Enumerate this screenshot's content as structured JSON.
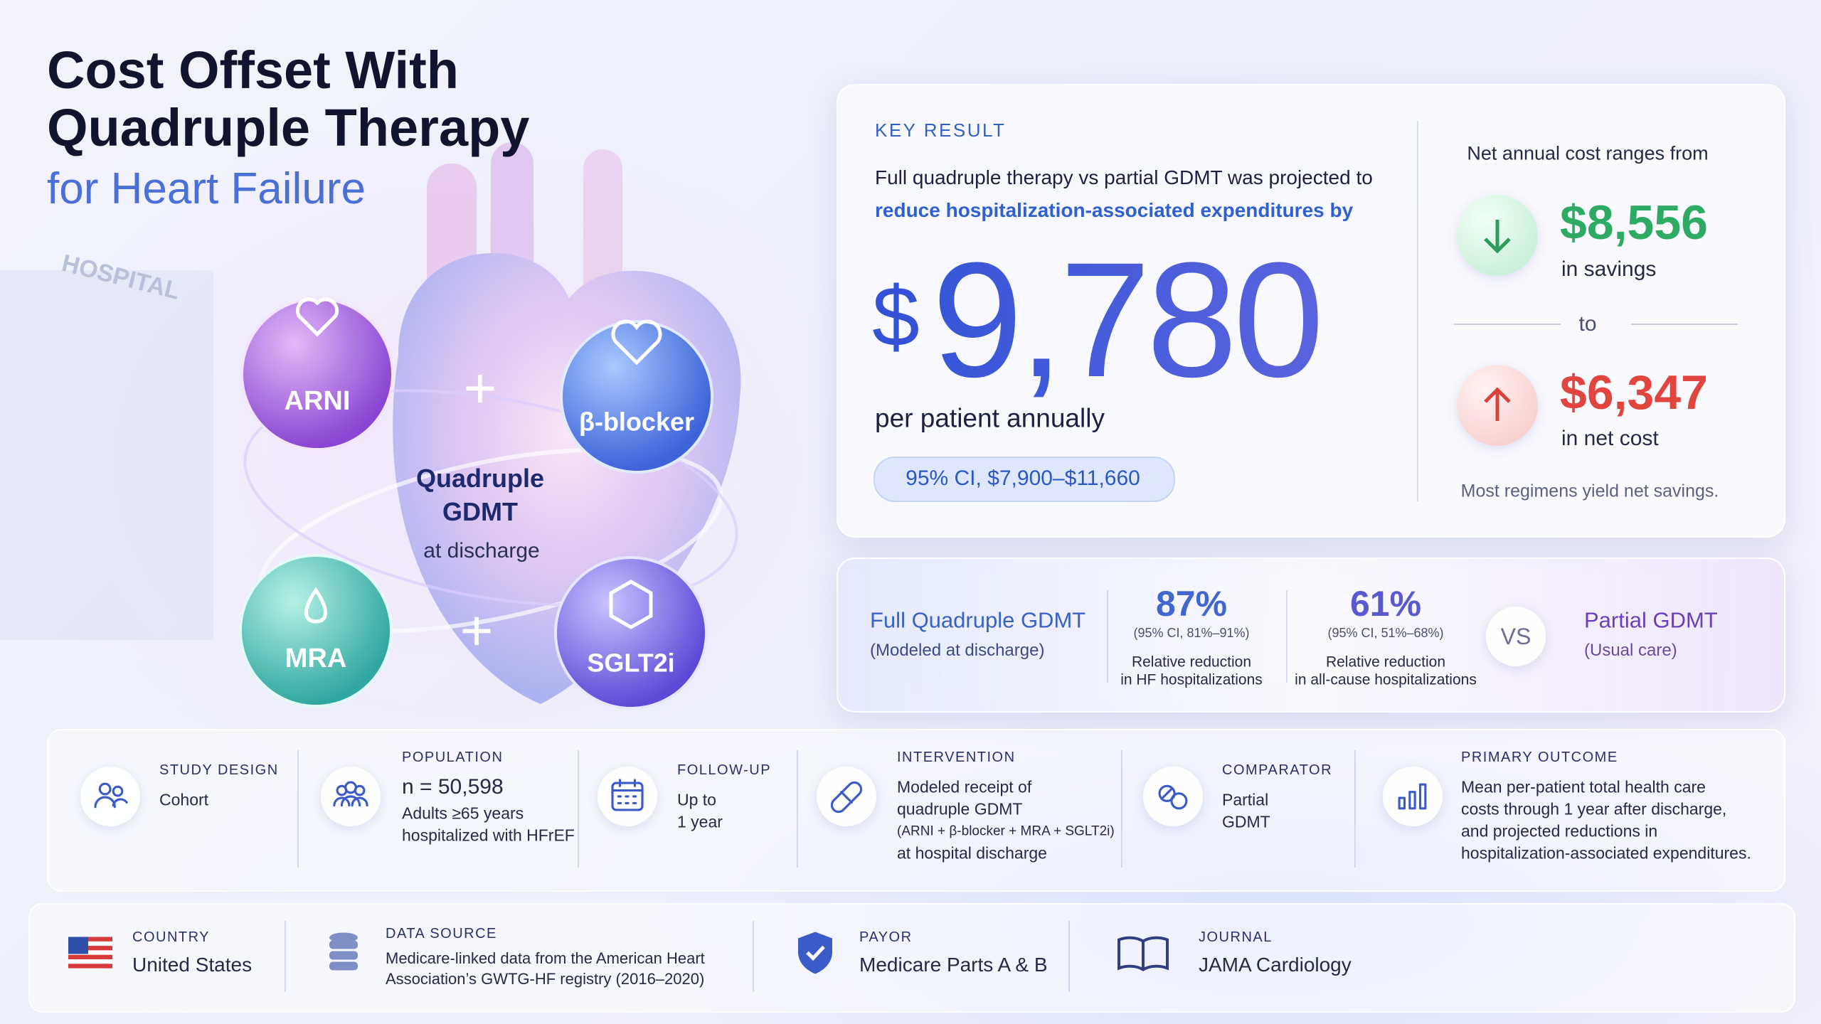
{
  "header": {
    "title_lines": [
      "Cost Offset With",
      "Quadruple Therapy"
    ],
    "subtitle": "for Heart Failure"
  },
  "illustration": {
    "sign": "HOSPITAL",
    "drugs": [
      "ARNI",
      "β-blocker",
      "MRA",
      "SGLT2i"
    ],
    "center_title": "Quadruple GDMT",
    "center_subtitle": "at discharge"
  },
  "key_result": {
    "label": "KEY RESULT",
    "line1": "Full quadruple therapy vs partial GDMT was projected to",
    "line2": "reduce hospitalization-associated expenditures by",
    "currency": "$",
    "amount": "9,780",
    "unit": "per patient annually",
    "ci": "95% CI, $7,900–$11,660"
  },
  "range": {
    "heading": "Net annual cost ranges from",
    "savings": "$8,556",
    "savings_label": "in savings",
    "to": "to",
    "cost": "$6,347",
    "cost_label": "in net cost",
    "note": "Most regimens yield net savings."
  },
  "comparison": {
    "left_title": "Full Quadruple GDMT",
    "left_sub": "(Modeled at discharge)",
    "stats": [
      {
        "value": "87%",
        "ci": "(95% CI, 81%–91%)",
        "lines": [
          "Relative reduction",
          "in HF hospitalizations"
        ]
      },
      {
        "value": "61%",
        "ci": "(95% CI, 51%–68%)",
        "lines": [
          "Relative reduction",
          "in all-cause hospitalizations"
        ]
      }
    ],
    "vs": "VS",
    "right_title": "Partial GDMT",
    "right_sub": "(Usual care)"
  },
  "study": [
    {
      "label": "STUDY DESIGN",
      "lines": [
        "Cohort"
      ]
    },
    {
      "label": "POPULATION",
      "lines": [
        "n = 50,598",
        "Adults ≥65 years",
        "hospitalized with HFrEF"
      ]
    },
    {
      "label": "FOLLOW-UP",
      "lines": [
        "Up to",
        "1 year"
      ]
    },
    {
      "label": "INTERVENTION",
      "lines": [
        "Modeled receipt of",
        "quadruple GDMT",
        "(ARNI + β-blocker + MRA + SGLT2i)",
        "at hospital discharge"
      ]
    },
    {
      "label": "COMPARATOR",
      "lines": [
        "Partial",
        "GDMT"
      ]
    },
    {
      "label": "PRIMARY OUTCOME",
      "lines": [
        "Mean per-patient total health care",
        "costs through 1 year after discharge,",
        "and projected reductions in",
        "hospitalization-associated expenditures."
      ]
    }
  ],
  "footer": [
    {
      "label": "COUNTRY",
      "lines": [
        "United States"
      ]
    },
    {
      "label": "DATA SOURCE",
      "lines": [
        "Medicare-linked data from the American Heart",
        "Association’s GWTG-HF registry (2016–2020)"
      ]
    },
    {
      "label": "PAYOR",
      "lines": [
        "Medicare Parts A & B"
      ]
    },
    {
      "label": "JOURNAL",
      "lines": [
        "JAMA Cardiology"
      ]
    }
  ]
}
